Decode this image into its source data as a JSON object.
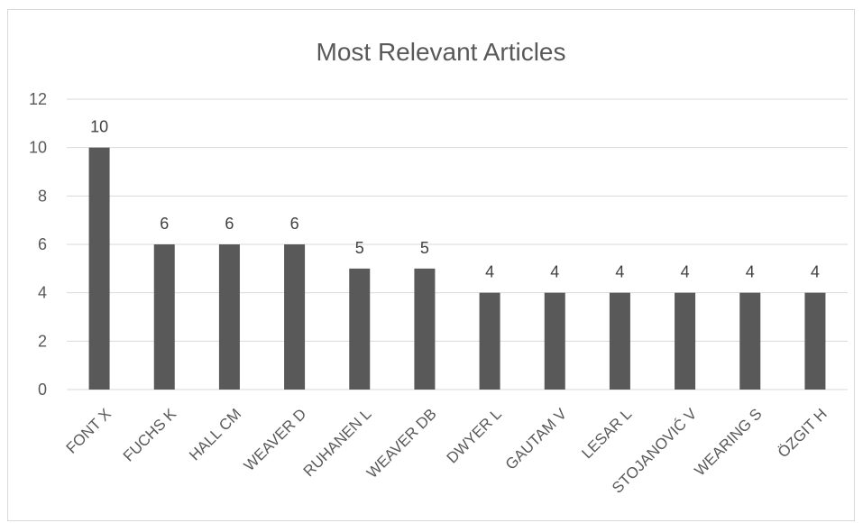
{
  "chart_data": {
    "type": "bar",
    "title": "Most Relevant Articles",
    "xlabel": "",
    "ylabel": "",
    "categories": [
      "FONT X",
      "FUCHS K",
      "HALL CM",
      "WEAVER D",
      "RUHANEN L",
      "WEAVER DB",
      "DWYER L",
      "GAUTAM V",
      "LESAR L",
      "STOJANOVIĆ V",
      "WEARING S",
      "ÖZGIT H"
    ],
    "values": [
      10,
      6,
      6,
      6,
      5,
      5,
      4,
      4,
      4,
      4,
      4,
      4
    ],
    "ylim": [
      0,
      12
    ],
    "yticks": [
      0,
      2,
      4,
      6,
      8,
      10,
      12
    ],
    "grid": true,
    "legend": "none",
    "data_labels": true,
    "bar_color": "#595959",
    "grid_color": "#d9d9d9",
    "text_color": "#595959"
  }
}
